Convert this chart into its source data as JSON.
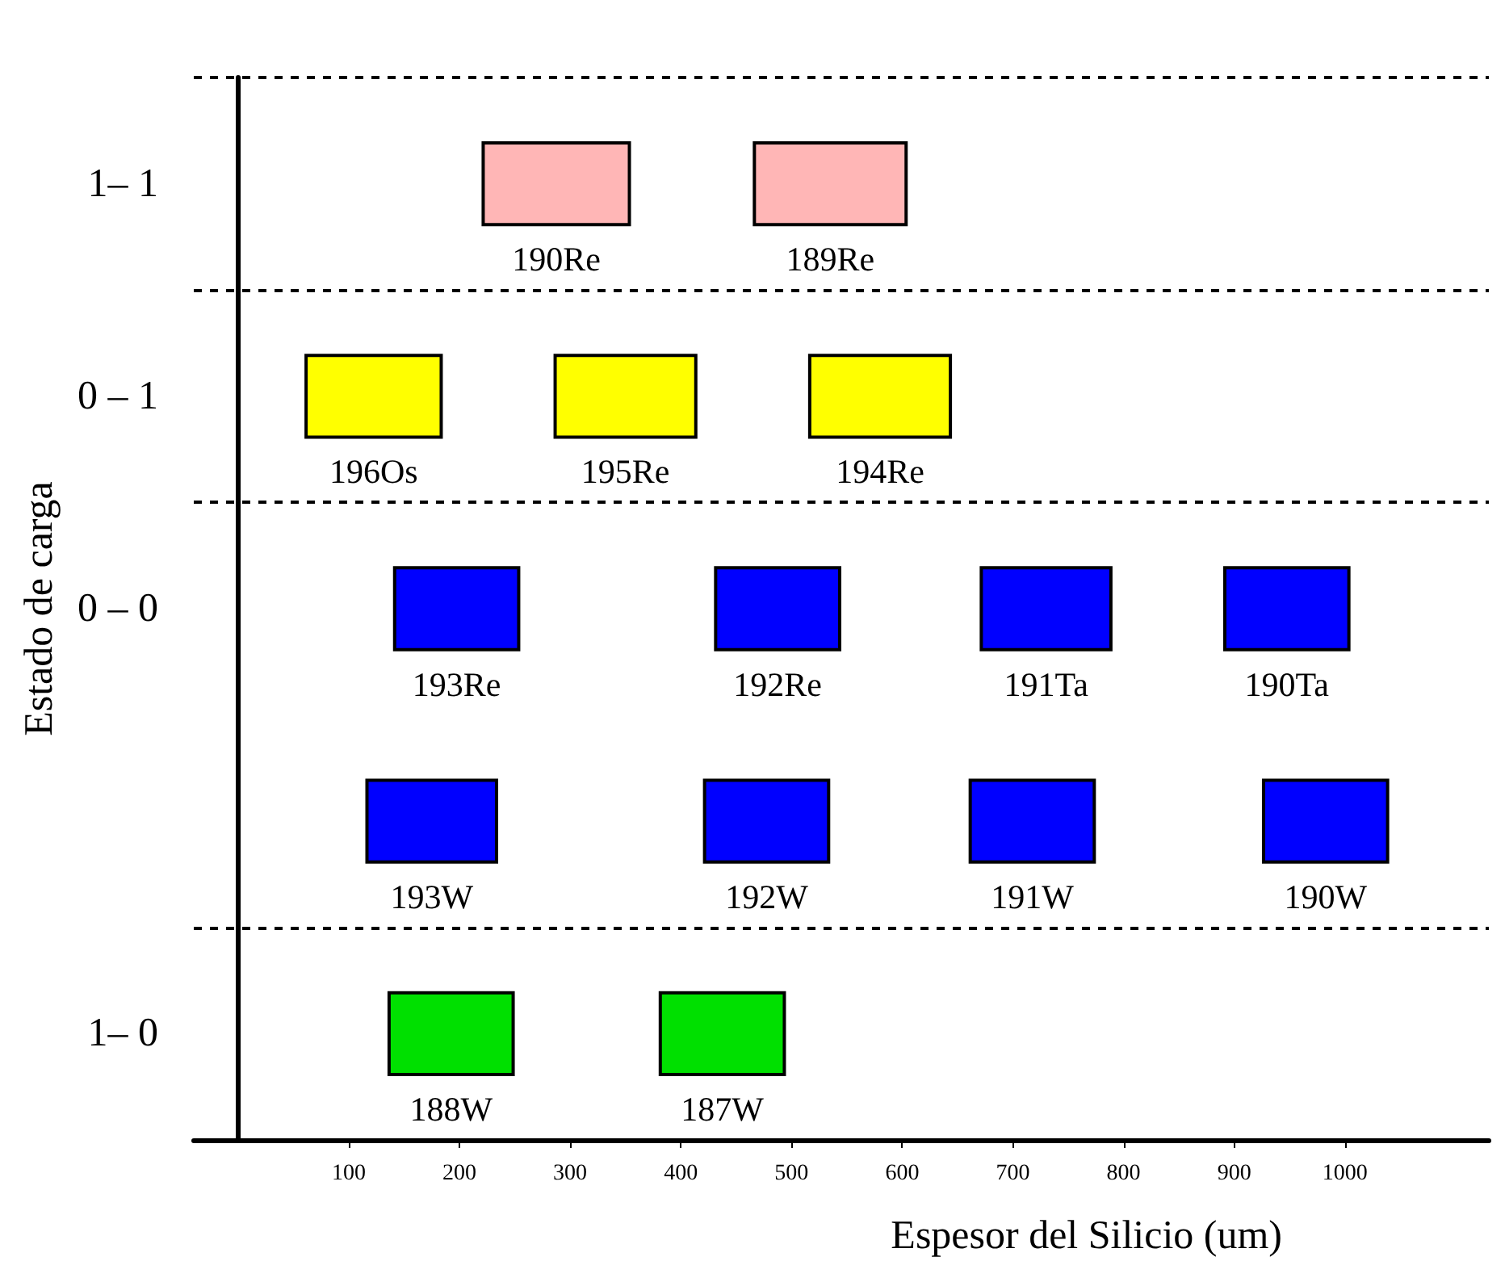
{
  "chart_data": {
    "type": "bar",
    "orientation": "horizontal",
    "ylabel": "Estado de carga",
    "xlabel": "Espesor del Silicio (um)",
    "categories": [
      "1– 1",
      "0 – 1",
      "0 – 0",
      null,
      "1– 0"
    ],
    "xlim": [
      -40,
      1130
    ],
    "xticks": [
      100,
      200,
      300,
      400,
      500,
      600,
      700,
      800,
      900,
      1000
    ],
    "grid": "y",
    "series": [
      {
        "name": "190Re",
        "color": "#ffb6b6",
        "base": [
          220,
          null,
          null,
          null,
          null
        ],
        "values": [
          135,
          null,
          null,
          null,
          null
        ]
      },
      {
        "name": "189Re",
        "color": "#ffb6b6",
        "base": [
          465,
          null,
          null,
          null,
          null
        ],
        "values": [
          140,
          null,
          null,
          null,
          null
        ]
      },
      {
        "name": "196Os",
        "color": "#ffff00",
        "base": [
          null,
          60,
          null,
          null,
          null
        ],
        "values": [
          null,
          125,
          null,
          null,
          null
        ]
      },
      {
        "name": "195Re",
        "color": "#ffff00",
        "base": [
          null,
          285,
          null,
          null,
          null
        ],
        "values": [
          null,
          130,
          null,
          null,
          null
        ]
      },
      {
        "name": "194Re",
        "color": "#ffff00",
        "base": [
          null,
          515,
          null,
          null,
          null
        ],
        "values": [
          null,
          130,
          null,
          null,
          null
        ]
      },
      {
        "name": "193Re",
        "color": "#0000ff",
        "base": [
          null,
          null,
          140,
          null,
          null
        ],
        "values": [
          null,
          null,
          115,
          null,
          null
        ]
      },
      {
        "name": "192Re",
        "color": "#0000ff",
        "base": [
          null,
          null,
          430,
          null,
          null
        ],
        "values": [
          null,
          null,
          115,
          null,
          null
        ]
      },
      {
        "name": "191Ta",
        "color": "#0000ff",
        "base": [
          null,
          null,
          670,
          null,
          null
        ],
        "values": [
          null,
          null,
          120,
          null,
          null
        ]
      },
      {
        "name": "190Ta",
        "color": "#0000ff",
        "base": [
          null,
          null,
          890,
          null,
          null
        ],
        "values": [
          null,
          null,
          115,
          null,
          null
        ]
      },
      {
        "name": "193W",
        "color": "#0000ff",
        "base": [
          null,
          null,
          null,
          115,
          null
        ],
        "values": [
          null,
          null,
          null,
          120,
          null
        ]
      },
      {
        "name": "192W",
        "color": "#0000ff",
        "base": [
          null,
          null,
          null,
          420,
          null
        ],
        "values": [
          null,
          null,
          null,
          115,
          null
        ]
      },
      {
        "name": "191W",
        "color": "#0000ff",
        "base": [
          null,
          null,
          null,
          660,
          null
        ],
        "values": [
          null,
          null,
          null,
          115,
          null
        ]
      },
      {
        "name": "190W",
        "color": "#0000ff",
        "base": [
          null,
          null,
          null,
          925,
          null
        ],
        "values": [
          null,
          null,
          null,
          115,
          null
        ]
      },
      {
        "name": "188W",
        "color": "#00e000",
        "base": [
          null,
          null,
          null,
          null,
          135
        ],
        "values": [
          null,
          null,
          null,
          null,
          115
        ]
      },
      {
        "name": "187W",
        "color": "#00e000",
        "base": [
          null,
          null,
          null,
          null,
          380
        ],
        "values": [
          null,
          null,
          null,
          null,
          115
        ]
      }
    ]
  }
}
